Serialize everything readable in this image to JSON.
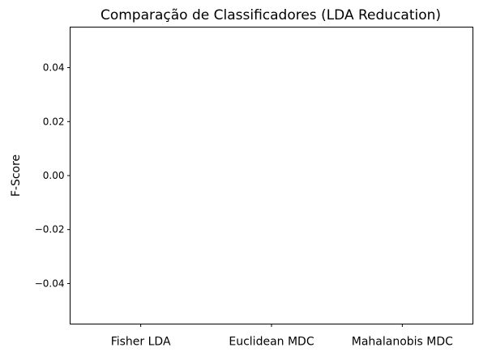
{
  "chart_data": {
    "type": "bar",
    "title": "Comparação de Classificadores (LDA Reducation)",
    "xlabel": "",
    "ylabel": "F-Score",
    "categories": [
      "Fisher LDA",
      "Euclidean MDC",
      "Mahalanobis MDC"
    ],
    "values": [
      0,
      0,
      0
    ],
    "ylim": [
      -0.055,
      0.055
    ],
    "yticks": [
      -0.04,
      -0.02,
      0.0,
      0.02,
      0.04
    ],
    "ytick_labels": [
      "−0.04",
      "−0.02",
      "0.00",
      "0.02",
      "0.04"
    ],
    "grid": false,
    "legend": false
  }
}
